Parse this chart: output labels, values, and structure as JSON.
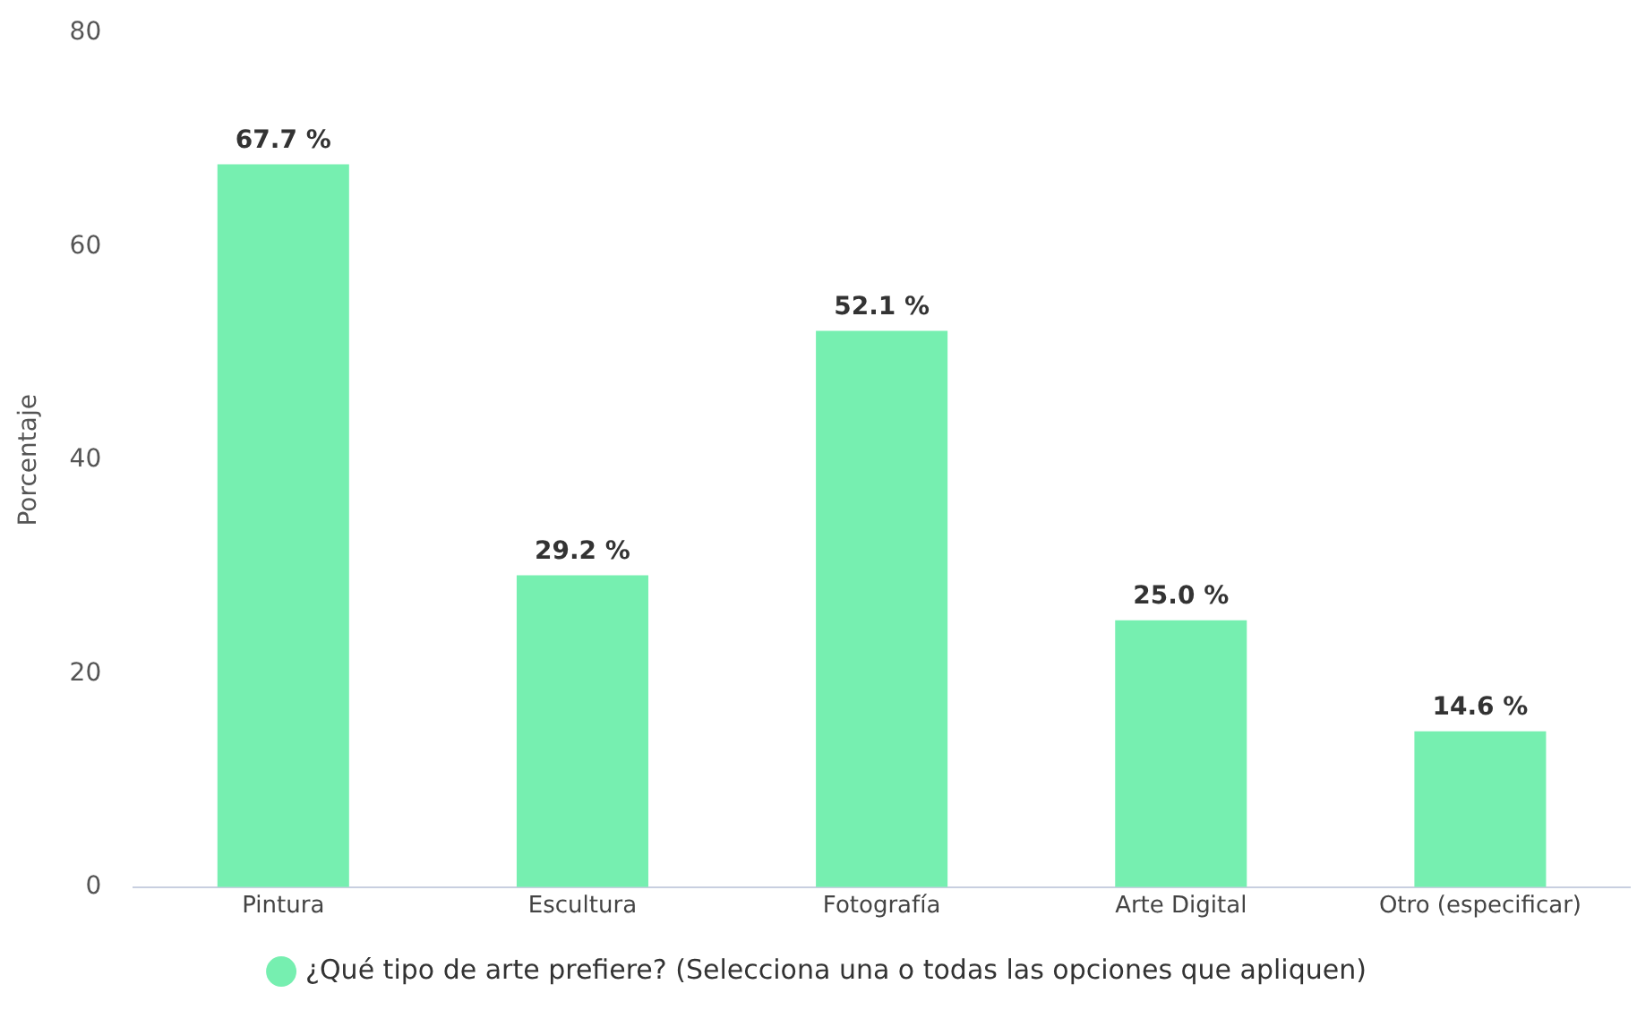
{
  "chart_data": {
    "type": "bar",
    "ylabel": "Porcentaje",
    "categories": [
      "Pintura",
      "Escultura",
      "Fotografía",
      "Arte Digital",
      "Otro (especificar)"
    ],
    "series": [
      {
        "name": "¿Qué tipo de arte prefiere? (Selecciona una o todas las opciones que apliquen)",
        "color": "#76efb0",
        "values": [
          67.7,
          29.2,
          52.1,
          25.0,
          14.6
        ],
        "value_labels": [
          "67.7 %",
          "29.2 %",
          "52.1 %",
          "25.0 %",
          "14.6 %"
        ]
      }
    ],
    "ylim": [
      0,
      80
    ],
    "yticks": [
      0,
      20,
      40,
      60,
      80
    ],
    "grid": false,
    "legend": "bottom"
  }
}
